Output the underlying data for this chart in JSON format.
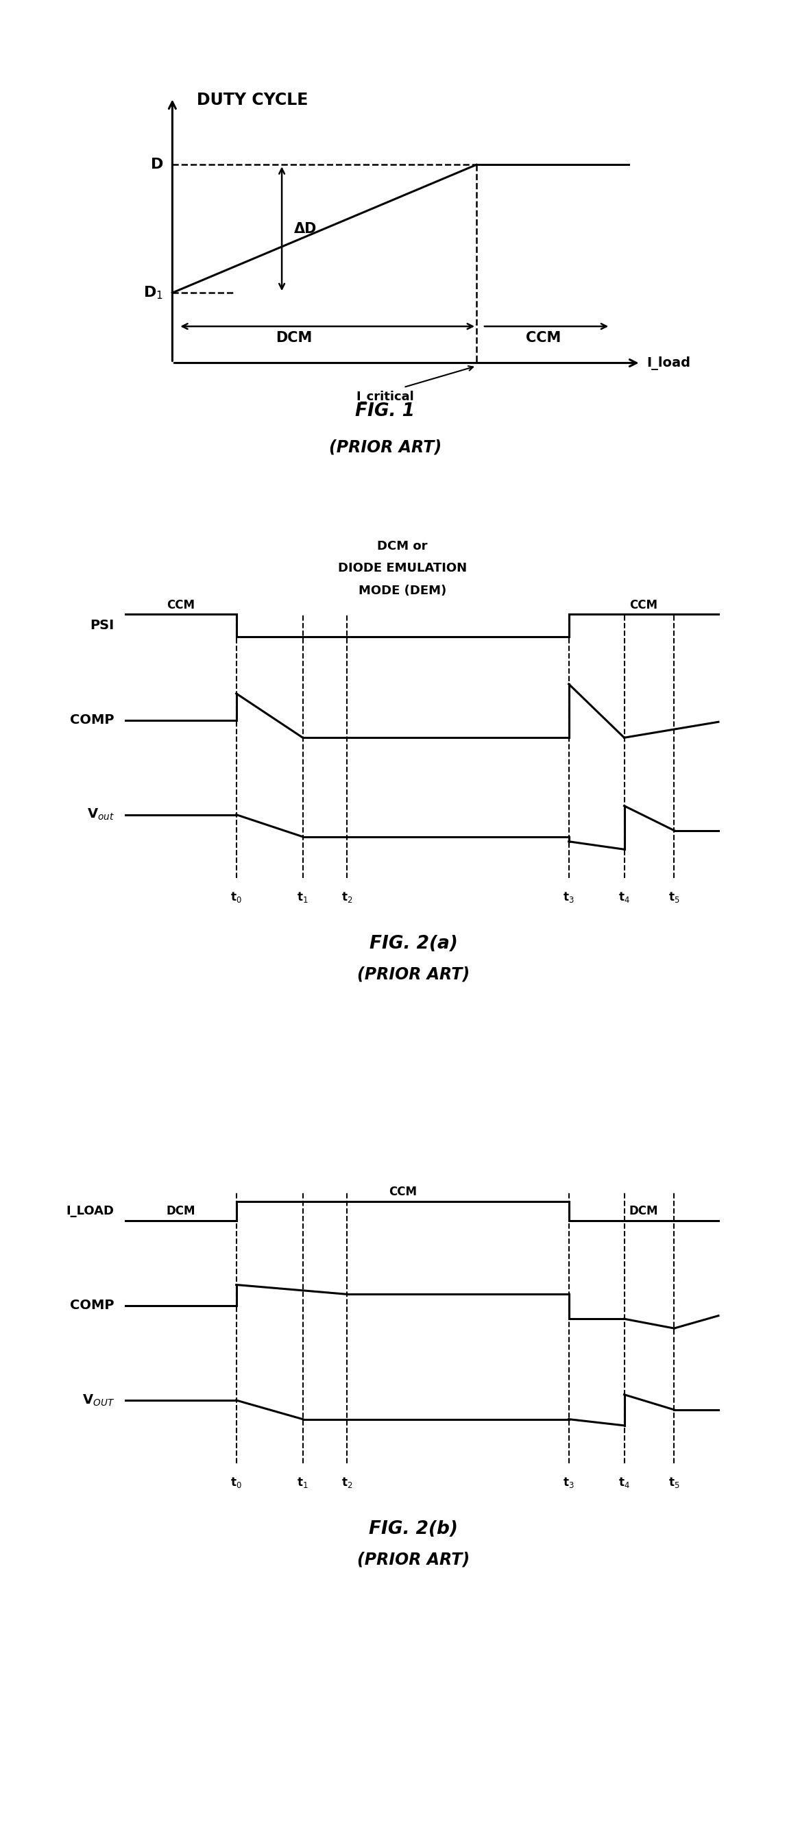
{
  "fig1": {
    "title": "DUTY CYCLE",
    "label_D": "D",
    "label_D1": "D$_1$",
    "label_deltaD": "ΔD",
    "label_load": "I_load",
    "label_critical": "I_critical",
    "label_DCM": "DCM",
    "label_CCM": "CCM",
    "caption": "FIG. 1",
    "caption2": "(PRIOR ART)"
  },
  "fig2a": {
    "title_line1": "DCM or",
    "title_line2": "DIODE EMULATION",
    "title_line3": "MODE (DEM)",
    "label_PSI": "PSI",
    "label_CCM_left": "CCM",
    "label_CCM_right": "CCM",
    "label_COMP": "COMP",
    "label_Vout": "V$_{out}$",
    "t_labels": [
      "t$_0$",
      "t$_1$",
      "t$_2$",
      "t$_3$",
      "t$_4$",
      "t$_5$"
    ],
    "caption": "FIG. 2(a)",
    "caption2": "(PRIOR ART)"
  },
  "fig2b": {
    "label_ILOAD": "I_LOAD",
    "label_DCM_left": "DCM",
    "label_CCM": "CCM",
    "label_DCM_right": "DCM",
    "label_COMP": "COMP",
    "label_VOUT": "V$_{OUT}$",
    "t_labels": [
      "t$_0$",
      "t$_1$",
      "t$_2$",
      "t$_3$",
      "t$_4$",
      "t$_5$"
    ],
    "caption": "FIG. 2(b)",
    "caption2": "(PRIOR ART)"
  },
  "bg_color": "#ffffff",
  "line_color": "#000000"
}
